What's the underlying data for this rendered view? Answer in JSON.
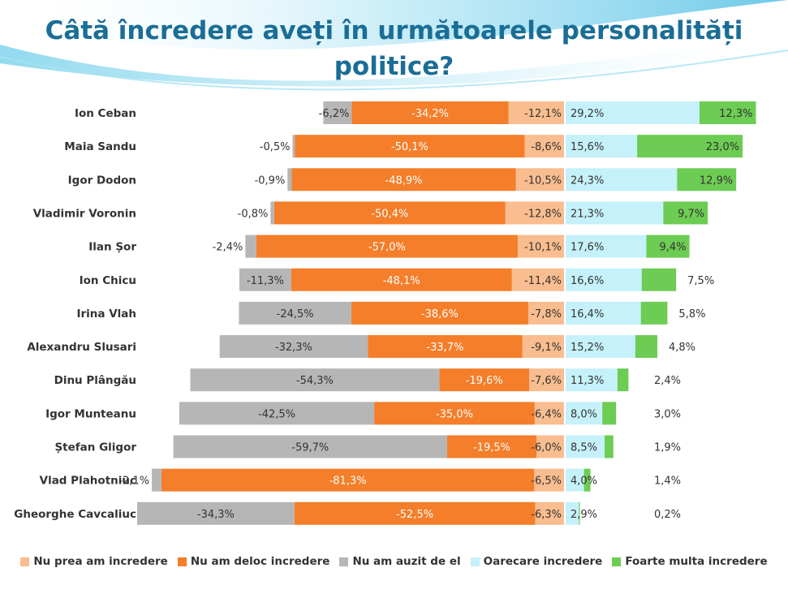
{
  "title_line1": "Câtă încredere aveți în următoarele personalități",
  "title_line2": "politice?",
  "chart_data": {
    "type": "bar",
    "orientation": "horizontal",
    "stacked": "diverging",
    "categories": [
      "Ion Ceban",
      "Maia Sandu",
      "Igor Dodon",
      "Vladimir Voronin",
      "Ilan Șor",
      "Ion Chicu",
      "Irina Vlah",
      "Alexandru Slusari",
      "Dinu Plângău",
      "Igor Munteanu",
      "Ștefan Gligor",
      "Vlad Plahotniuc",
      "Gheorghe Cavcaliuc"
    ],
    "series": [
      {
        "name": "Nu prea am incredere",
        "color": "#f9bd8f",
        "side": "negative",
        "values": [
          -12.1,
          -8.6,
          -10.5,
          -12.8,
          -10.1,
          -11.4,
          -7.8,
          -9.1,
          -7.6,
          -6.4,
          -6.0,
          -6.5,
          -6.3
        ],
        "labels": [
          "-12,1%",
          "-8,6%",
          "-10,5%",
          "-12,8%",
          "-10,1%",
          "-11,4%",
          "-7,8%",
          "-9,1%",
          "-7,6%",
          "-6,4%",
          "-6,0%",
          "-6,5%",
          "-6,3%"
        ]
      },
      {
        "name": "Nu am deloc incredere",
        "color": "#f47e2a",
        "side": "negative",
        "values": [
          -34.2,
          -50.1,
          -48.9,
          -50.4,
          -57.0,
          -48.1,
          -38.6,
          -33.7,
          -19.6,
          -35.0,
          -19.5,
          -81.3,
          -52.5
        ],
        "labels": [
          "-34,2%",
          "-50,1%",
          "-48,9%",
          "-50,4%",
          "-57,0%",
          "-48,1%",
          "-38,6%",
          "-33,7%",
          "-19,6%",
          "-35,0%",
          "-19,5%",
          "-81,3%",
          "-52,5%"
        ]
      },
      {
        "name": "Nu am auzit de el",
        "color": "#b6b6b6",
        "side": "negative",
        "values": [
          -6.2,
          -0.5,
          -0.9,
          -0.8,
          -2.4,
          -11.3,
          -24.5,
          -32.3,
          -54.3,
          -42.5,
          -59.7,
          -2.1,
          -34.3
        ],
        "labels": [
          "-6,2%",
          "-0,5%",
          "-0,9%",
          "-0,8%",
          "-2,4%",
          "-11,3%",
          "-24,5%",
          "-32,3%",
          "-54,3%",
          "-42,5%",
          "-59,7%",
          "-2,1%",
          "-34,3%"
        ]
      },
      {
        "name": "Oarecare incredere",
        "color": "#c5f1fa",
        "side": "positive",
        "values": [
          29.2,
          15.6,
          24.3,
          21.3,
          17.6,
          16.6,
          16.4,
          15.2,
          11.3,
          8.0,
          8.5,
          4.0,
          2.9
        ],
        "labels": [
          "29,2%",
          "15,6%",
          "24,3%",
          "21,3%",
          "17,6%",
          "16,6%",
          "16,4%",
          "15,2%",
          "11,3%",
          "8,0%",
          "8,5%",
          "4,0%",
          "2,9%"
        ]
      },
      {
        "name": "Foarte multa incredere",
        "color": "#6dcc53",
        "side": "positive",
        "values": [
          12.3,
          23.0,
          12.9,
          9.7,
          9.4,
          7.5,
          5.8,
          4.8,
          2.4,
          3.0,
          1.9,
          1.4,
          0.2
        ],
        "labels": [
          "12,3%",
          "23,0%",
          "12,9%",
          "9,7%",
          "9,4%",
          "7,5%",
          "5,8%",
          "4,8%",
          "2,4%",
          "3,0%",
          "1,9%",
          "1,4%",
          "0,2%"
        ]
      }
    ],
    "legend_position": "bottom",
    "grid": false
  }
}
